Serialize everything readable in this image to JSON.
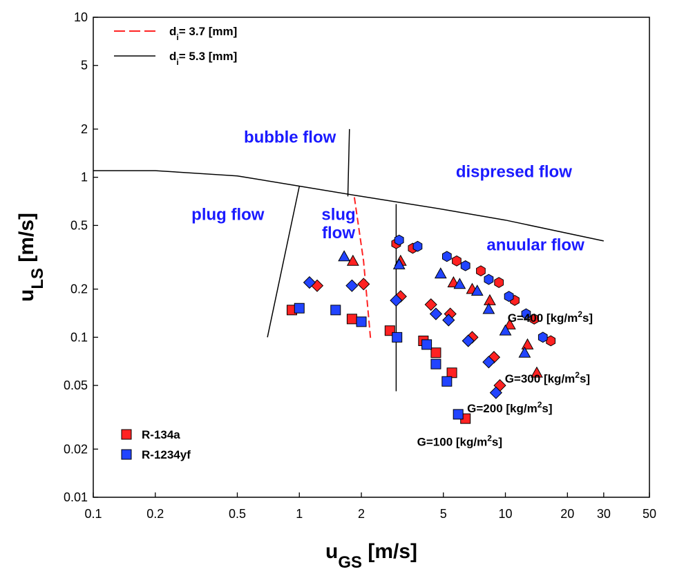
{
  "chart_data": {
    "type": "scatter",
    "xscale": "log",
    "yscale": "log",
    "xlim": [
      0.1,
      50
    ],
    "ylim": [
      0.01,
      10
    ],
    "xlabel": {
      "main": "u",
      "sub": "GS",
      "unit": " [m/s]"
    },
    "ylabel": {
      "main": "u",
      "sub": "LS",
      "unit": " [m/s]"
    },
    "x_ticks": [
      {
        "value": 0.1,
        "label": "0.1"
      },
      {
        "value": 0.2,
        "label": "0.2"
      },
      {
        "value": 0.5,
        "label": "0.5"
      },
      {
        "value": 1,
        "label": "1"
      },
      {
        "value": 2,
        "label": "2"
      },
      {
        "value": 5,
        "label": "5"
      },
      {
        "value": 10,
        "label": "10"
      },
      {
        "value": 20,
        "label": "20"
      },
      {
        "value": 30,
        "label": "30"
      },
      {
        "value": 50,
        "label": "50"
      }
    ],
    "y_ticks": [
      {
        "value": 0.01,
        "label": "0.01"
      },
      {
        "value": 0.02,
        "label": "0.02"
      },
      {
        "value": 0.05,
        "label": "0.05"
      },
      {
        "value": 0.1,
        "label": "0.1"
      },
      {
        "value": 0.2,
        "label": "0.2"
      },
      {
        "value": 0.5,
        "label": "0.5"
      },
      {
        "value": 1,
        "label": "1"
      },
      {
        "value": 2,
        "label": "2"
      },
      {
        "value": 5,
        "label": "5"
      },
      {
        "value": 10,
        "label": "10"
      }
    ],
    "colors": {
      "r134a": "#ff2222",
      "r1234yf": "#2244ff",
      "region_text": "#1a1aff",
      "di37_line": "#ff2222",
      "di53_line": "#000000"
    },
    "line_legend": [
      {
        "label_main": "d",
        "label_sub": "i",
        "label_rest": "= 3.7 [mm]",
        "style": "dashed",
        "color": "#ff2222"
      },
      {
        "label_main": "d",
        "label_sub": "i",
        "label_rest": "= 5.3 [mm]",
        "style": "solid",
        "color": "#000000"
      }
    ],
    "marker_legend": [
      {
        "label": "R-134a",
        "color": "#ff2222"
      },
      {
        "label": "R-1234yf",
        "color": "#2244ff"
      }
    ],
    "boundary_lines": [
      {
        "style": "solid",
        "points": [
          [
            0.1,
            1.1
          ],
          [
            0.2,
            1.1
          ],
          [
            0.5,
            1.02
          ],
          [
            1,
            0.88
          ],
          [
            2,
            0.76
          ],
          [
            5,
            0.63
          ],
          [
            10,
            0.54
          ],
          [
            30,
            0.4
          ]
        ]
      },
      {
        "style": "solid",
        "points": [
          [
            1.75,
            2.0
          ],
          [
            1.72,
            0.76
          ]
        ]
      },
      {
        "style": "solid",
        "points": [
          [
            0.7,
            0.1
          ],
          [
            1.0,
            0.88
          ]
        ]
      },
      {
        "style": "solid",
        "points": [
          [
            2.95,
            0.68
          ],
          [
            2.95,
            0.046
          ]
        ]
      },
      {
        "style": "dashed",
        "points": [
          [
            1.85,
            0.75
          ],
          [
            2.05,
            0.3
          ],
          [
            2.22,
            0.095
          ]
        ]
      }
    ],
    "region_labels": [
      {
        "text": "bubble flow",
        "x": 0.9,
        "y": 1.65
      },
      {
        "text": "dispresed flow",
        "x": 11,
        "y": 1.0
      },
      {
        "text": "plug flow",
        "x": 0.45,
        "y": 0.54
      },
      {
        "text": "slug",
        "x": 1.55,
        "y": 0.54
      },
      {
        "text": "flow",
        "x": 1.55,
        "y": 0.415
      },
      {
        "text": "anuular flow",
        "x": 14,
        "y": 0.35
      }
    ],
    "g_labels": [
      {
        "main": "G=400 [kg/m",
        "sup": "2",
        "rest": "s]",
        "x": 16.5,
        "y": 0.125
      },
      {
        "main": "G=300 [kg/m",
        "sup": "2",
        "rest": "s]",
        "x": 16.0,
        "y": 0.052
      },
      {
        "main": "G=200 [kg/m",
        "sup": "2",
        "rest": "s]",
        "x": 10.5,
        "y": 0.034
      },
      {
        "main": "G=100 [kg/m",
        "sup": "2",
        "rest": "s]",
        "x": 6.0,
        "y": 0.021
      }
    ],
    "series": [
      {
        "name": "R-134a",
        "color": "#ff2222",
        "points": [
          {
            "x": 0.92,
            "y": 0.148,
            "shape": "square"
          },
          {
            "x": 1.8,
            "y": 0.13,
            "shape": "square"
          },
          {
            "x": 2.75,
            "y": 0.11,
            "shape": "square"
          },
          {
            "x": 4.0,
            "y": 0.095,
            "shape": "square"
          },
          {
            "x": 4.6,
            "y": 0.08,
            "shape": "square"
          },
          {
            "x": 5.5,
            "y": 0.06,
            "shape": "square"
          },
          {
            "x": 6.4,
            "y": 0.031,
            "shape": "square"
          },
          {
            "x": 1.22,
            "y": 0.21,
            "shape": "diamond"
          },
          {
            "x": 2.05,
            "y": 0.215,
            "shape": "diamond"
          },
          {
            "x": 3.1,
            "y": 0.18,
            "shape": "diamond"
          },
          {
            "x": 4.35,
            "y": 0.16,
            "shape": "diamond"
          },
          {
            "x": 5.4,
            "y": 0.14,
            "shape": "diamond"
          },
          {
            "x": 6.9,
            "y": 0.1,
            "shape": "diamond"
          },
          {
            "x": 8.8,
            "y": 0.075,
            "shape": "diamond"
          },
          {
            "x": 9.4,
            "y": 0.05,
            "shape": "diamond"
          },
          {
            "x": 1.82,
            "y": 0.3,
            "shape": "triangle"
          },
          {
            "x": 3.1,
            "y": 0.3,
            "shape": "triangle"
          },
          {
            "x": 5.6,
            "y": 0.22,
            "shape": "triangle"
          },
          {
            "x": 6.9,
            "y": 0.2,
            "shape": "triangle"
          },
          {
            "x": 8.4,
            "y": 0.17,
            "shape": "triangle"
          },
          {
            "x": 10.5,
            "y": 0.12,
            "shape": "triangle"
          },
          {
            "x": 12.8,
            "y": 0.09,
            "shape": "triangle"
          },
          {
            "x": 14.2,
            "y": 0.06,
            "shape": "triangle"
          },
          {
            "x": 2.95,
            "y": 0.385,
            "shape": "hexagon"
          },
          {
            "x": 3.55,
            "y": 0.36,
            "shape": "hexagon"
          },
          {
            "x": 5.8,
            "y": 0.3,
            "shape": "hexagon"
          },
          {
            "x": 7.6,
            "y": 0.26,
            "shape": "hexagon"
          },
          {
            "x": 9.3,
            "y": 0.22,
            "shape": "hexagon"
          },
          {
            "x": 11.1,
            "y": 0.17,
            "shape": "hexagon"
          },
          {
            "x": 13.8,
            "y": 0.13,
            "shape": "hexagon"
          },
          {
            "x": 16.6,
            "y": 0.095,
            "shape": "hexagon"
          }
        ]
      },
      {
        "name": "R-1234yf",
        "color": "#2244ff",
        "points": [
          {
            "x": 1.0,
            "y": 0.152,
            "shape": "square"
          },
          {
            "x": 1.5,
            "y": 0.148,
            "shape": "square"
          },
          {
            "x": 2.0,
            "y": 0.125,
            "shape": "square"
          },
          {
            "x": 2.98,
            "y": 0.1,
            "shape": "square"
          },
          {
            "x": 4.15,
            "y": 0.09,
            "shape": "square"
          },
          {
            "x": 4.6,
            "y": 0.068,
            "shape": "square"
          },
          {
            "x": 5.2,
            "y": 0.053,
            "shape": "square"
          },
          {
            "x": 5.9,
            "y": 0.033,
            "shape": "square"
          },
          {
            "x": 1.12,
            "y": 0.22,
            "shape": "diamond"
          },
          {
            "x": 1.8,
            "y": 0.21,
            "shape": "diamond"
          },
          {
            "x": 2.95,
            "y": 0.17,
            "shape": "diamond"
          },
          {
            "x": 4.6,
            "y": 0.14,
            "shape": "diamond"
          },
          {
            "x": 5.3,
            "y": 0.128,
            "shape": "diamond"
          },
          {
            "x": 6.6,
            "y": 0.095,
            "shape": "diamond"
          },
          {
            "x": 8.3,
            "y": 0.07,
            "shape": "diamond"
          },
          {
            "x": 9.0,
            "y": 0.045,
            "shape": "diamond"
          },
          {
            "x": 1.65,
            "y": 0.32,
            "shape": "triangle"
          },
          {
            "x": 3.05,
            "y": 0.285,
            "shape": "triangle"
          },
          {
            "x": 4.85,
            "y": 0.25,
            "shape": "triangle"
          },
          {
            "x": 6.0,
            "y": 0.215,
            "shape": "triangle"
          },
          {
            "x": 7.3,
            "y": 0.195,
            "shape": "triangle"
          },
          {
            "x": 8.3,
            "y": 0.15,
            "shape": "triangle"
          },
          {
            "x": 10.0,
            "y": 0.11,
            "shape": "triangle"
          },
          {
            "x": 12.4,
            "y": 0.08,
            "shape": "triangle"
          },
          {
            "x": 3.05,
            "y": 0.405,
            "shape": "hexagon"
          },
          {
            "x": 3.75,
            "y": 0.37,
            "shape": "hexagon"
          },
          {
            "x": 5.2,
            "y": 0.32,
            "shape": "hexagon"
          },
          {
            "x": 6.4,
            "y": 0.28,
            "shape": "hexagon"
          },
          {
            "x": 8.3,
            "y": 0.23,
            "shape": "hexagon"
          },
          {
            "x": 10.4,
            "y": 0.18,
            "shape": "hexagon"
          },
          {
            "x": 12.6,
            "y": 0.14,
            "shape": "hexagon"
          },
          {
            "x": 15.2,
            "y": 0.1,
            "shape": "hexagon"
          }
        ]
      }
    ]
  }
}
